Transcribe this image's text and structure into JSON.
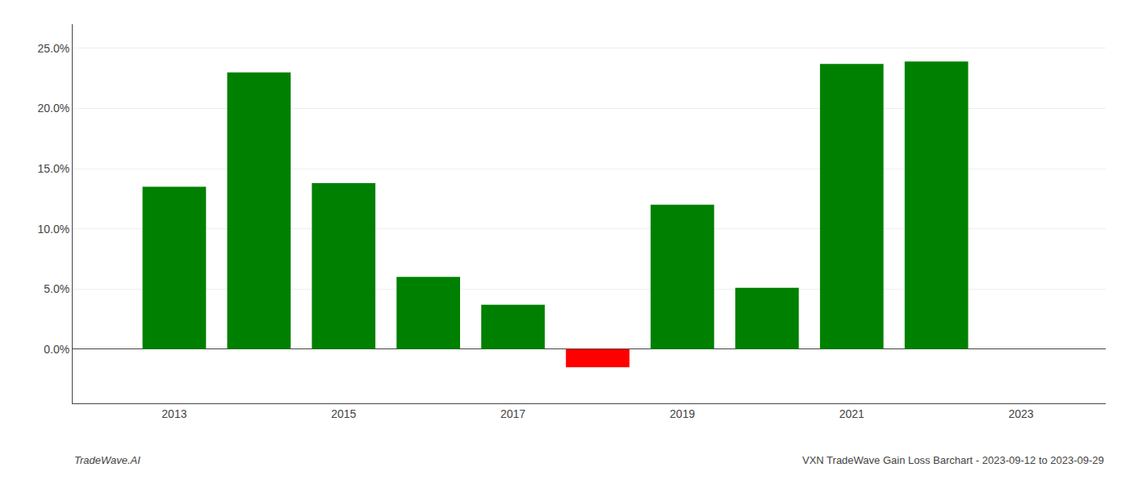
{
  "chart_data": {
    "type": "bar",
    "x": [
      2013,
      2014,
      2015,
      2016,
      2017,
      2018,
      2019,
      2020,
      2021,
      2022
    ],
    "values": [
      0.135,
      0.23,
      0.138,
      0.06,
      0.037,
      -0.015,
      0.12,
      0.051,
      0.237,
      0.239
    ],
    "colors": [
      "#008000",
      "#008000",
      "#008000",
      "#008000",
      "#008000",
      "#ff0000",
      "#008000",
      "#008000",
      "#008000",
      "#008000"
    ],
    "xlim": [
      2011.8,
      2024.0
    ],
    "xticks": [
      2013,
      2015,
      2017,
      2019,
      2021,
      2023
    ],
    "ylim": [
      -0.045,
      0.27
    ],
    "yticks": [
      {
        "value": 0.0,
        "label": "0.0%"
      },
      {
        "value": 0.05,
        "label": "5.0%"
      },
      {
        "value": 0.1,
        "label": "10.0%"
      },
      {
        "value": 0.15,
        "label": "15.0%"
      },
      {
        "value": 0.2,
        "label": "20.0%"
      },
      {
        "value": 0.25,
        "label": "25.0%"
      }
    ],
    "grid": true,
    "annotations": [
      "TradeWave.AI",
      "VXN TradeWave Gain Loss Barchart - 2023-09-12 to 2023-09-29"
    ]
  }
}
